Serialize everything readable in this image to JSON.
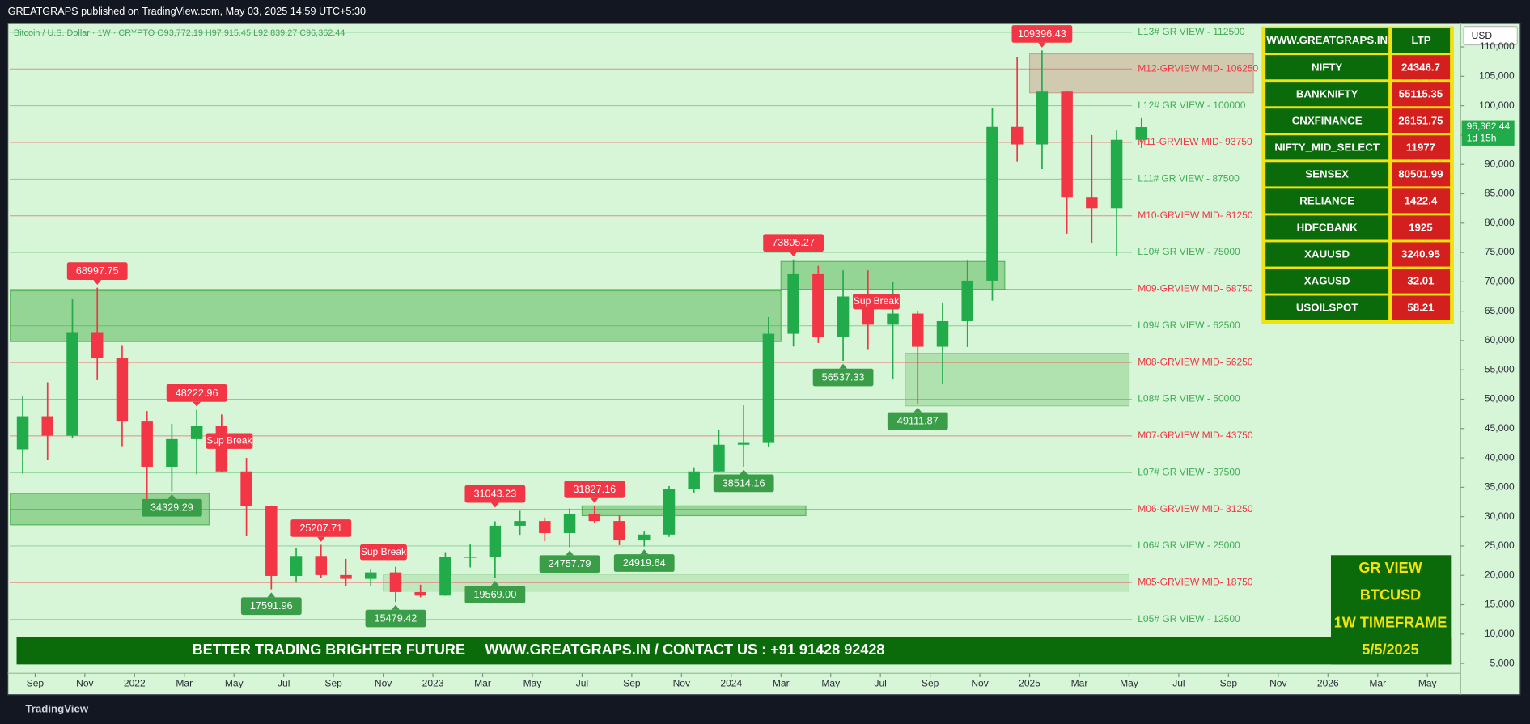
{
  "header": {
    "text": "GREATGRAPS published on TradingView.com, May 03, 2025 14:59 UTC+5:30"
  },
  "chart_data": {
    "type": "candlestick",
    "title": "Bitcoin / U.S. Dollar · 1W · CRYPTO  O93,772.19 H97,915.45 L92,839.27 C96,362.44",
    "currency": "USD",
    "up_color": "#22ab4a",
    "down_color": "#f23645",
    "x": [
      "2021-08",
      "2021-09",
      "2021-10",
      "2021-11",
      "2021-12",
      "2022-01",
      "2022-02",
      "2022-03",
      "2022-04",
      "2022-05",
      "2022-06",
      "2022-07",
      "2022-08",
      "2022-09",
      "2022-10",
      "2022-11",
      "2022-12",
      "2023-01",
      "2023-02",
      "2023-03",
      "2023-04",
      "2023-05",
      "2023-06",
      "2023-07",
      "2023-08",
      "2023-09",
      "2023-10",
      "2023-11",
      "2023-12",
      "2024-01",
      "2024-02",
      "2024-03",
      "2024-04",
      "2024-05",
      "2024-06",
      "2024-07",
      "2024-08",
      "2024-09",
      "2024-10",
      "2024-11",
      "2024-12",
      "2025-01",
      "2025-02",
      "2025-03",
      "2025-04",
      "2025-05"
    ],
    "open": [
      41460,
      47100,
      43800,
      61300,
      57000,
      46200,
      38500,
      43200,
      45500,
      37700,
      31800,
      19900,
      23300,
      20050,
      19400,
      20500,
      17150,
      16550,
      23150,
      23150,
      28450,
      29250,
      27200,
      30450,
      29250,
      25950,
      26950,
      34650,
      37700,
      42250,
      42550,
      61150,
      71300,
      60650,
      67500,
      62700,
      64600,
      58950,
      63300,
      70200,
      96400,
      93400,
      102400,
      84350,
      82550,
      94200
    ],
    "high": [
      50500,
      52900,
      67000,
      69000,
      59100,
      47990,
      45800,
      48200,
      47400,
      40000,
      31900,
      24700,
      25200,
      22800,
      21100,
      21450,
      18400,
      23950,
      25250,
      29200,
      31000,
      29850,
      31400,
      31800,
      30200,
      27450,
      35200,
      38400,
      44700,
      48950,
      64000,
      73800,
      72700,
      71950,
      71950,
      70000,
      65100,
      66500,
      73600,
      99600,
      108300,
      109400,
      102500,
      95000,
      95800,
      97900
    ],
    "low": [
      37330,
      39600,
      43300,
      53250,
      42000,
      32900,
      34300,
      37200,
      37600,
      26700,
      17600,
      18800,
      19500,
      18150,
      18200,
      15480,
      16250,
      16500,
      21350,
      19550,
      26900,
      25800,
      24800,
      28850,
      25150,
      24900,
      26550,
      34100,
      37600,
      38500,
      41900,
      59000,
      59600,
      56550,
      58400,
      53500,
      49100,
      52550,
      58900,
      66800,
      90500,
      89200,
      78200,
      76600,
      74400,
      92800
    ],
    "close": [
      47100,
      43800,
      61300,
      57000,
      46200,
      38500,
      43200,
      45500,
      37700,
      31800,
      19900,
      23300,
      20050,
      19400,
      20500,
      17150,
      16550,
      23150,
      23150,
      28450,
      29250,
      27200,
      30450,
      29250,
      25950,
      26950,
      34650,
      37700,
      42250,
      42550,
      61150,
      71300,
      60650,
      67500,
      62700,
      64600,
      58950,
      63300,
      70200,
      96400,
      93400,
      102400,
      84350,
      82550,
      94200,
      96362.44
    ],
    "xlim": [
      "2021-08",
      "2026-06"
    ],
    "xticks": [
      {
        "value": "2021-09",
        "label": "Sep"
      },
      {
        "value": "2021-11",
        "label": "Nov"
      },
      {
        "value": "2022-01",
        "label": "2022"
      },
      {
        "value": "2022-03",
        "label": "Mar"
      },
      {
        "value": "2022-05",
        "label": "May"
      },
      {
        "value": "2022-07",
        "label": "Jul"
      },
      {
        "value": "2022-09",
        "label": "Sep"
      },
      {
        "value": "2022-11",
        "label": "Nov"
      },
      {
        "value": "2023-01",
        "label": "2023"
      },
      {
        "value": "2023-03",
        "label": "Mar"
      },
      {
        "value": "2023-05",
        "label": "May"
      },
      {
        "value": "2023-07",
        "label": "Jul"
      },
      {
        "value": "2023-09",
        "label": "Sep"
      },
      {
        "value": "2023-11",
        "label": "Nov"
      },
      {
        "value": "2024-01",
        "label": "2024"
      },
      {
        "value": "2024-03",
        "label": "Mar"
      },
      {
        "value": "2024-05",
        "label": "May"
      },
      {
        "value": "2024-07",
        "label": "Jul"
      },
      {
        "value": "2024-09",
        "label": "Sep"
      },
      {
        "value": "2024-11",
        "label": "Nov"
      },
      {
        "value": "2025-01",
        "label": "2025"
      },
      {
        "value": "2025-03",
        "label": "Mar"
      },
      {
        "value": "2025-05",
        "label": "May"
      },
      {
        "value": "2025-07",
        "label": "Jul"
      },
      {
        "value": "2025-09",
        "label": "Sep"
      },
      {
        "value": "2025-11",
        "label": "Nov"
      },
      {
        "value": "2026-01",
        "label": "2026"
      },
      {
        "value": "2026-03",
        "label": "Mar"
      },
      {
        "value": "2026-05",
        "label": "May"
      }
    ],
    "ylim": [
      3000,
      114000
    ],
    "yticks": [
      {
        "value": 5000,
        "label": "5,000"
      },
      {
        "value": 10000,
        "label": "10,000"
      },
      {
        "value": 15000,
        "label": "15,000"
      },
      {
        "value": 20000,
        "label": "20,000"
      },
      {
        "value": 25000,
        "label": "25,000"
      },
      {
        "value": 30000,
        "label": "30,000"
      },
      {
        "value": 35000,
        "label": "35,000"
      },
      {
        "value": 40000,
        "label": "40,000"
      },
      {
        "value": 45000,
        "label": "45,000"
      },
      {
        "value": 50000,
        "label": "50,000"
      },
      {
        "value": 55000,
        "label": "55,000"
      },
      {
        "value": 60000,
        "label": "60,000"
      },
      {
        "value": 65000,
        "label": "65,000"
      },
      {
        "value": 70000,
        "label": "70,000"
      },
      {
        "value": 75000,
        "label": "75,000"
      },
      {
        "value": 80000,
        "label": "80,000"
      },
      {
        "value": 85000,
        "label": "85,000"
      },
      {
        "value": 90000,
        "label": "90,000"
      },
      {
        "value": 95000,
        "label": "95,000"
      },
      {
        "value": 100000,
        "label": "100,000"
      },
      {
        "value": 105000,
        "label": "105,000"
      },
      {
        "value": 110000,
        "label": "110,000"
      }
    ],
    "grid": false,
    "last_price": {
      "value": 96362.44,
      "label": "96,362.44"
    },
    "countdown": "1d 15h",
    "levels": [
      {
        "value": 112500,
        "label": "L13# GR VIEW -  112500",
        "color": "#3fae55"
      },
      {
        "value": 106250,
        "label": "M12-GRVIEW MID- 106250",
        "color": "#f23645"
      },
      {
        "value": 100000,
        "label": "L12# GR VIEW -  100000",
        "color": "#3fae55"
      },
      {
        "value": 93750,
        "label": "M11-GRVIEW MID- 93750",
        "color": "#f23645"
      },
      {
        "value": 87500,
        "label": "L11# GR VIEW -  87500",
        "color": "#3fae55"
      },
      {
        "value": 81250,
        "label": "M10-GRVIEW MID- 81250",
        "color": "#f23645"
      },
      {
        "value": 75000,
        "label": "L10# GR VIEW -  75000",
        "color": "#3fae55"
      },
      {
        "value": 68750,
        "label": "M09-GRVIEW MID- 68750",
        "color": "#f23645"
      },
      {
        "value": 62500,
        "label": "L09# GR VIEW -  62500",
        "color": "#3fae55"
      },
      {
        "value": 56250,
        "label": "M08-GRVIEW MID- 56250",
        "color": "#f23645"
      },
      {
        "value": 50000,
        "label": "L08# GR VIEW -  50000",
        "color": "#3fae55"
      },
      {
        "value": 43750,
        "label": "M07-GRVIEW MID- 43750",
        "color": "#f23645"
      },
      {
        "value": 37500,
        "label": "L07# GR VIEW -  37500",
        "color": "#3fae55"
      },
      {
        "value": 31250,
        "label": "M06-GRVIEW MID- 31250",
        "color": "#f23645"
      },
      {
        "value": 25000,
        "label": "L06# GR VIEW -  25000",
        "color": "#3fae55"
      },
      {
        "value": 18750,
        "label": "M05-GRVIEW MID- 18750",
        "color": "#f23645"
      },
      {
        "value": 12500,
        "label": "L05# GR VIEW -  12500",
        "color": "#3fae55"
      }
    ],
    "zones": [
      {
        "x": [
          "2021-08",
          "2024-03"
        ],
        "values": [
          59834,
          68471
        ],
        "color": "#5cb85c"
      },
      {
        "x": [
          "2024-03",
          "2024-12"
        ],
        "values": [
          68637,
          73455
        ],
        "color": "#5cb85c"
      },
      {
        "x": [
          "2024-08",
          "2025-05"
        ],
        "values": [
          48874,
          57844
        ],
        "color": "#8fd18f"
      },
      {
        "x": [
          "2021-08",
          "2022-04"
        ],
        "values": [
          28601,
          33937
        ],
        "color": "#5cb85c"
      },
      {
        "x": [
          "2023-07",
          "2024-04"
        ],
        "values": [
          30166,
          31827
        ],
        "color": "#5cb85c"
      },
      {
        "x": [
          "2022-11",
          "2025-05"
        ],
        "values": [
          17309,
          20133
        ],
        "color": "#a9dca9"
      },
      {
        "x": [
          "2025-01",
          "2025-10"
        ],
        "values": [
          102193,
          108837
        ],
        "color": "#c9a58f"
      }
    ],
    "high_labels": {
      "color": "#f23645",
      "x": [
        "2021-11",
        "2022-03",
        "2022-08",
        "2023-03",
        "2023-07",
        "2024-03",
        "2025-01"
      ],
      "values": [
        68997.75,
        48222.96,
        25207.71,
        31043.23,
        31827.16,
        73805.27,
        109396.43
      ]
    },
    "low_labels": {
      "color": "#3a9d48",
      "x": [
        "2022-02",
        "2022-06",
        "2022-11",
        "2023-03",
        "2023-06",
        "2023-09",
        "2024-01",
        "2024-05",
        "2024-08"
      ],
      "values": [
        34329.29,
        17591.96,
        15479.42,
        19569,
        24757.79,
        24919.64,
        38514.16,
        56537.33,
        49111.87
      ],
      "value_labels": [
        "34329.29",
        "17591.96",
        "15479.42",
        "19569.00",
        "24757.79",
        "24919.64",
        "38514.16",
        "56537.33",
        "49111.87"
      ]
    },
    "annotations": [
      "Sup Break",
      "Sup Break",
      "Sup Break"
    ]
  },
  "watchlist": {
    "header": [
      "WWW.GREATGRAPS.IN",
      "LTP"
    ],
    "rows": [
      [
        "NIFTY",
        "24346.7"
      ],
      [
        "BANKNIFTY",
        "55115.35"
      ],
      [
        "CNXFINANCE",
        "26151.75"
      ],
      [
        "NIFTY_MID_SELECT",
        "11977"
      ],
      [
        "SENSEX",
        "80501.99"
      ],
      [
        "RELIANCE",
        "1422.4"
      ],
      [
        "HDFCBANK",
        "1925"
      ],
      [
        "XAUUSD",
        "3240.95"
      ],
      [
        "XAGUSD",
        "32.01"
      ],
      [
        "USOILSPOT",
        "58.21"
      ]
    ]
  },
  "banner": {
    "left": "BETTER TRADING BRIGHTER FUTURE",
    "right": "WWW.GREATGRAPS.IN / CONTACT US : +91 91428 92428"
  },
  "promo": [
    "GR VIEW",
    "BTCUSD",
    "1W TIMEFRAME",
    "5/5/2025"
  ],
  "footer": {
    "text": "TradingView"
  }
}
